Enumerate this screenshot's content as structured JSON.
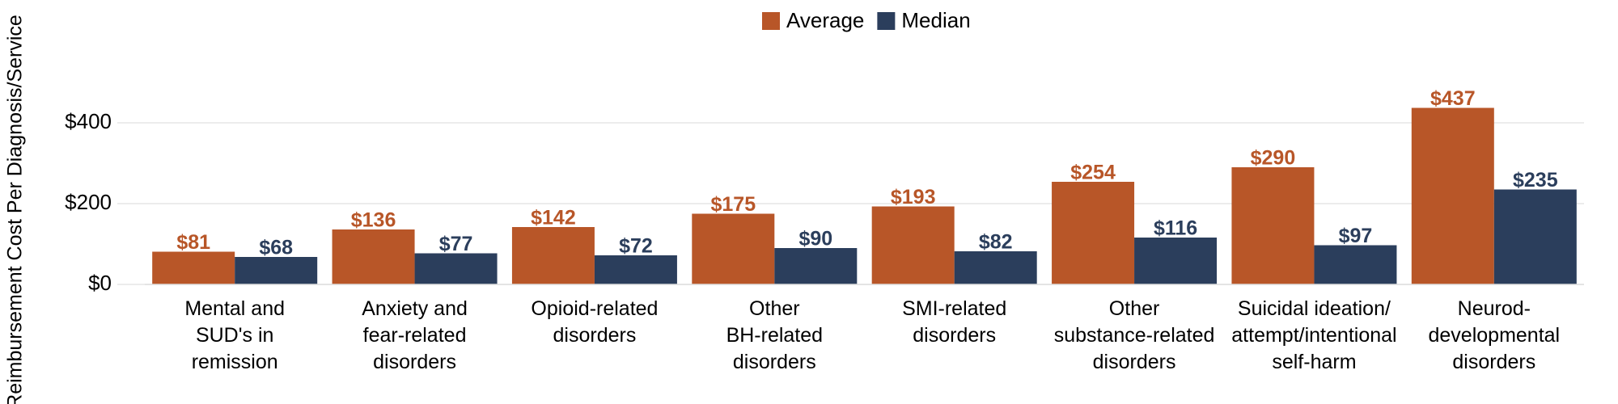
{
  "chart_data": {
    "type": "bar",
    "y_axis_label": "Reimbursement Cost Per Diagnosis/Service",
    "categories": [
      "Mental and\nSUD's in\nremission",
      "Anxiety and\nfear-related\ndisorders",
      "Opioid-related\ndisorders",
      "Other\nBH-related\ndisorders",
      "SMI-related\ndisorders",
      "Other\nsubstance-related\ndisorders",
      "Suicidal ideation/\nattempt/intentional\nself-harm",
      "Neurod-\ndevelopmental\ndisorders"
    ],
    "series": [
      {
        "name": "Average",
        "color": "#b85628",
        "values": [
          81,
          136,
          142,
          175,
          193,
          254,
          290,
          437
        ],
        "value_labels": [
          "$81",
          "$136",
          "$142",
          "$175",
          "$193",
          "$254",
          "$290",
          "$437"
        ]
      },
      {
        "name": "Median",
        "color": "#2b3e5c",
        "values": [
          68,
          77,
          72,
          90,
          82,
          116,
          97,
          235
        ],
        "value_labels": [
          "$68",
          "$77",
          "$72",
          "$90",
          "$82",
          "$116",
          "$97",
          "$235"
        ]
      }
    ],
    "ylim": [
      0,
      500
    ],
    "yticks": [
      {
        "value": 0,
        "label": "$0"
      },
      {
        "value": 200,
        "label": "$200"
      },
      {
        "value": 400,
        "label": "$400"
      }
    ],
    "grid": true,
    "legend": "top"
  }
}
